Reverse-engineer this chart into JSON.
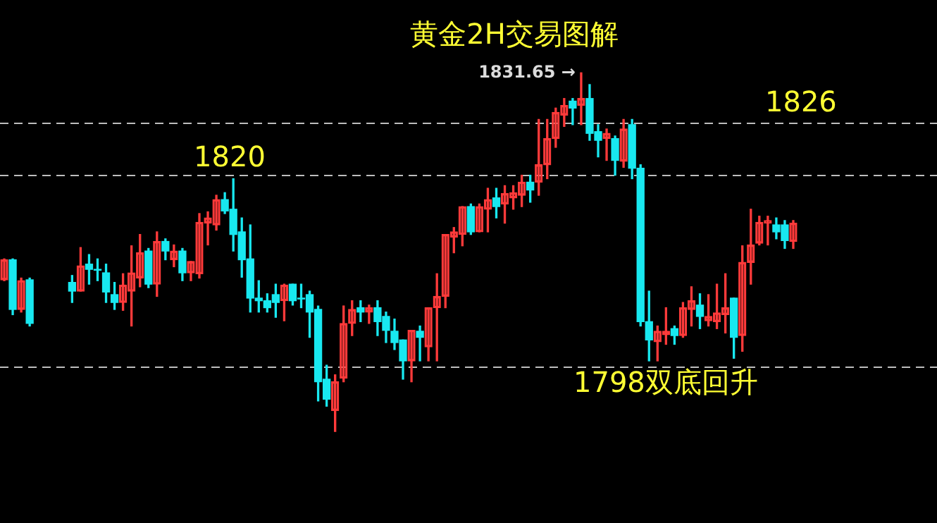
{
  "chart_data": {
    "type": "candlestick",
    "title": "黄金2H交易图解",
    "categories": [
      null,
      null,
      null,
      null,
      null,
      null,
      null,
      null,
      null,
      null,
      null,
      null,
      null,
      null,
      null,
      null,
      null,
      null,
      null,
      null,
      null,
      null,
      null,
      null,
      null,
      null,
      null,
      null,
      null,
      null,
      null,
      null,
      null,
      null,
      null,
      null,
      null,
      null,
      null,
      null,
      null,
      null,
      null,
      null,
      null,
      null,
      null,
      null,
      null,
      null,
      null,
      null,
      null,
      null,
      null,
      null,
      null,
      null,
      null,
      null,
      null,
      null,
      null,
      null,
      null,
      null,
      null,
      null,
      null,
      null,
      null,
      null,
      null,
      null,
      null,
      null,
      null,
      null,
      null,
      null,
      null,
      null,
      null,
      null,
      null,
      null,
      null,
      null,
      null,
      null,
      null,
      null,
      null,
      null
    ],
    "ohlc": [
      [
        1807.9,
        1810.3,
        1807.8,
        1810.2
      ],
      [
        1810.2,
        1810.3,
        1803.9,
        1804.5
      ],
      [
        1804.5,
        1808.1,
        1804.2,
        1807.8
      ],
      [
        1807.9,
        1808.1,
        1802.6,
        1802.9
      ],
      null,
      null,
      null,
      null,
      [
        1807.6,
        1808.4,
        1805.3,
        1806.6
      ],
      [
        1806.6,
        1811.6,
        1806.6,
        1809.5
      ],
      [
        1809.7,
        1810.8,
        1807.4,
        1809.1
      ],
      [
        1809.1,
        1810.3,
        1807.8,
        1809.0
      ],
      [
        1808.7,
        1809.7,
        1805.3,
        1806.5
      ],
      [
        1806.2,
        1807.6,
        1804.5,
        1805.3
      ],
      [
        1805.3,
        1808.6,
        1804.4,
        1807.3
      ],
      [
        1806.6,
        1811.8,
        1802.6,
        1808.7
      ],
      [
        1808.1,
        1813.1,
        1807.1,
        1811.0
      ],
      [
        1811.2,
        1811.5,
        1807.0,
        1807.4
      ],
      [
        1807.4,
        1813.4,
        1806.0,
        1812.3
      ],
      [
        1812.3,
        1812.6,
        1810.2,
        1811.2
      ],
      [
        1810.2,
        1811.9,
        1809.4,
        1811.2
      ],
      [
        1811.2,
        1811.5,
        1807.8,
        1808.7
      ],
      [
        1808.7,
        1810.0,
        1807.8,
        1810.0
      ],
      [
        1808.6,
        1815.5,
        1808.1,
        1814.5
      ],
      [
        1814.4,
        1815.7,
        1811.9,
        1815.0
      ],
      [
        1814.2,
        1817.6,
        1813.6,
        1817.1
      ],
      [
        1817.1,
        1817.9,
        1815.5,
        1815.8
      ],
      [
        1816.0,
        1819.5,
        1811.2,
        1813.1
      ],
      [
        1813.4,
        1815.0,
        1808.2,
        1810.2
      ],
      [
        1810.3,
        1814.2,
        1804.2,
        1805.8
      ],
      [
        1805.8,
        1807.8,
        1804.2,
        1805.5
      ],
      [
        1805.5,
        1806.3,
        1804.2,
        1804.7
      ],
      [
        1806.2,
        1807.4,
        1803.6,
        1805.3
      ],
      [
        1805.5,
        1807.4,
        1803.2,
        1807.3
      ],
      [
        1807.4,
        1807.4,
        1805.0,
        1805.5
      ],
      [
        1805.8,
        1807.4,
        1804.7,
        1805.7
      ],
      [
        1806.2,
        1806.6,
        1801.3,
        1804.2
      ],
      [
        1804.5,
        1804.9,
        1794.0,
        1796.2
      ],
      [
        1796.5,
        1798.1,
        1793.4,
        1794.2
      ],
      [
        1792.9,
        1797.0,
        1790.5,
        1796.2
      ],
      [
        1796.6,
        1804.9,
        1796.2,
        1802.9
      ],
      [
        1802.9,
        1805.5,
        1801.5,
        1804.5
      ],
      [
        1804.7,
        1805.5,
        1803.1,
        1804.2
      ],
      [
        1804.2,
        1805.0,
        1802.9,
        1804.7
      ],
      [
        1804.7,
        1805.5,
        1801.5,
        1803.1
      ],
      [
        1803.7,
        1804.2,
        1800.7,
        1802.1
      ],
      [
        1802.0,
        1803.4,
        1799.9,
        1800.7
      ],
      [
        1801.0,
        1801.0,
        1796.5,
        1798.6
      ],
      [
        1798.6,
        1802.1,
        1796.2,
        1802.1
      ],
      [
        1802.0,
        1802.6,
        1798.6,
        1801.3
      ],
      [
        1800.2,
        1804.7,
        1798.6,
        1804.7
      ],
      [
        1804.7,
        1808.6,
        1798.6,
        1806.0
      ],
      [
        1806.0,
        1813.1,
        1804.7,
        1813.1
      ],
      [
        1812.8,
        1813.9,
        1811.0,
        1813.4
      ],
      [
        1813.1,
        1816.3,
        1811.8,
        1816.3
      ],
      [
        1816.3,
        1816.6,
        1813.1,
        1813.4
      ],
      [
        1813.4,
        1816.6,
        1813.4,
        1816.3
      ],
      [
        1816.0,
        1818.4,
        1813.4,
        1817.1
      ],
      [
        1817.3,
        1818.4,
        1815.0,
        1816.3
      ],
      [
        1816.6,
        1818.7,
        1814.4,
        1817.8
      ],
      [
        1817.3,
        1818.7,
        1816.0,
        1817.9
      ],
      [
        1817.6,
        1819.9,
        1816.3,
        1819.1
      ],
      [
        1819.1,
        1819.9,
        1816.8,
        1818.2
      ],
      [
        1819.1,
        1826.3,
        1817.6,
        1821.1
      ],
      [
        1821.1,
        1826.3,
        1819.5,
        1824.1
      ],
      [
        1824.1,
        1827.6,
        1823.1,
        1827.1
      ],
      [
        1826.8,
        1828.7,
        1825.5,
        1827.9
      ],
      [
        1828.4,
        1828.7,
        1825.7,
        1827.6
      ],
      [
        1827.9,
        1831.65,
        1825.7,
        1828.7
      ],
      [
        1828.7,
        1830.3,
        1823.9,
        1824.7
      ],
      [
        1824.9,
        1825.7,
        1822.0,
        1823.9
      ],
      [
        1824.1,
        1825.2,
        1821.6,
        1824.7
      ],
      [
        1824.1,
        1824.4,
        1819.9,
        1821.6
      ],
      [
        1821.5,
        1826.3,
        1820.8,
        1825.2
      ],
      [
        1825.7,
        1826.3,
        1819.5,
        1820.7
      ],
      [
        1820.7,
        1821.1,
        1802.6,
        1803.1
      ],
      [
        1803.1,
        1806.6,
        1798.6,
        1801.0
      ],
      [
        1800.8,
        1802.6,
        1798.6,
        1802.0
      ],
      [
        1801.6,
        1804.7,
        1800.5,
        1802.0
      ],
      [
        1802.3,
        1802.6,
        1800.5,
        1801.5
      ],
      [
        1801.5,
        1805.3,
        1801.3,
        1804.7
      ],
      [
        1804.5,
        1807.1,
        1802.6,
        1805.5
      ],
      [
        1805.0,
        1806.3,
        1802.3,
        1803.7
      ],
      [
        1803.2,
        1806.2,
        1802.6,
        1803.7
      ],
      [
        1803.1,
        1807.4,
        1802.3,
        1804.1
      ],
      [
        1803.9,
        1808.6,
        1801.8,
        1804.7
      ],
      [
        1805.8,
        1805.8,
        1798.9,
        1801.3
      ],
      [
        1801.5,
        1811.8,
        1799.7,
        1809.9
      ],
      [
        1809.9,
        1816.0,
        1807.4,
        1811.9
      ],
      [
        1812.1,
        1815.2,
        1811.9,
        1814.5
      ],
      [
        1814.4,
        1815.2,
        1811.9,
        1814.7
      ],
      [
        1814.2,
        1815.0,
        1812.6,
        1813.4
      ],
      [
        1814.2,
        1814.7,
        1811.5,
        1812.4
      ],
      [
        1812.3,
        1814.7,
        1811.5,
        1814.4
      ]
    ],
    "ylim": [
      1780,
      1840
    ],
    "tick_labels": false,
    "legend": false,
    "ref_lines": [
      {
        "axis": "y",
        "value": 1826,
        "label": "1826",
        "color": "#bdbdbd",
        "line_style": "dashed"
      },
      {
        "axis": "y",
        "value": 1820,
        "label": "1820",
        "color": "#bdbdbd",
        "line_style": "dashed"
      },
      {
        "axis": "y",
        "value": 1798,
        "label": "1798双底回升",
        "color": "#bdbdbd",
        "line_style": "dashed"
      }
    ],
    "annotations": [
      "1831.65 →"
    ]
  }
}
